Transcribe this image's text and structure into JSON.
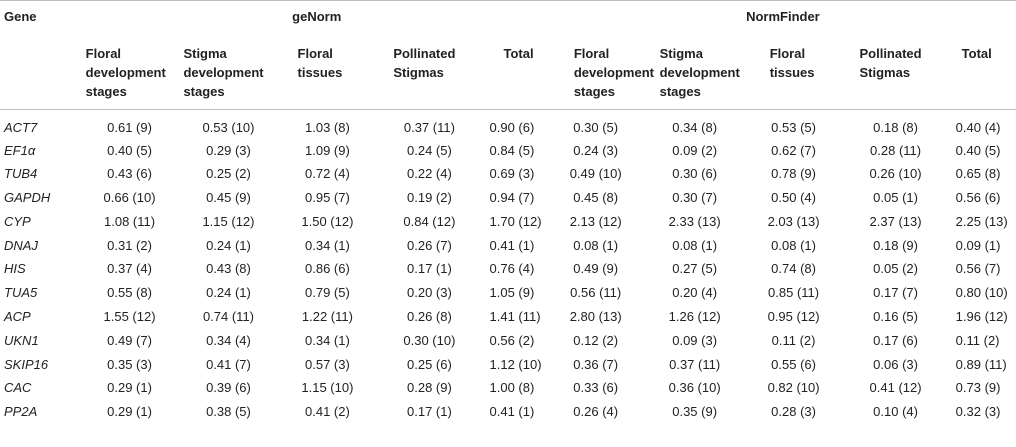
{
  "header": {
    "gene_label": "Gene",
    "groups": [
      {
        "name": "geNorm"
      },
      {
        "name": "NormFinder"
      }
    ],
    "subcolumns": [
      "Floral development stages",
      "Stigma development stages",
      "Floral tissues",
      "Pollinated Stigmas",
      "Total"
    ]
  },
  "rows": [
    {
      "gene": "ACT7",
      "genorm": [
        "0.61 (9)",
        "0.53 (10)",
        "1.03 (8)",
        "0.37 (11)",
        "0.90 (6)"
      ],
      "normfinder": [
        "0.30 (5)",
        "0.34 (8)",
        "0.53 (5)",
        "0.18 (8)",
        "0.40 (4)"
      ]
    },
    {
      "gene": "EF1α",
      "genorm": [
        "0.40 (5)",
        "0.29 (3)",
        "1.09 (9)",
        "0.24 (5)",
        "0.84 (5)"
      ],
      "normfinder": [
        "0.24 (3)",
        "0.09 (2)",
        "0.62 (7)",
        "0.28 (11)",
        "0.40 (5)"
      ]
    },
    {
      "gene": "TUB4",
      "genorm": [
        "0.43 (6)",
        "0.25 (2)",
        "0.72 (4)",
        "0.22 (4)",
        "0.69 (3)"
      ],
      "normfinder": [
        "0.49 (10)",
        "0.30 (6)",
        "0.78 (9)",
        "0.26 (10)",
        "0.65 (8)"
      ]
    },
    {
      "gene": "GAPDH",
      "genorm": [
        "0.66 (10)",
        "0.45 (9)",
        "0.95 (7)",
        "0.19 (2)",
        "0.94 (7)"
      ],
      "normfinder": [
        "0.45 (8)",
        "0.30 (7)",
        "0.50 (4)",
        "0.05 (1)",
        "0.56 (6)"
      ]
    },
    {
      "gene": "CYP",
      "genorm": [
        "1.08 (11)",
        "1.15 (12)",
        "1.50 (12)",
        "0.84 (12)",
        "1.70 (12)"
      ],
      "normfinder": [
        "2.13 (12)",
        "2.33 (13)",
        "2.03 (13)",
        "2.37 (13)",
        "2.25 (13)"
      ]
    },
    {
      "gene": "DNAJ",
      "genorm": [
        "0.31 (2)",
        "0.24 (1)",
        "0.34 (1)",
        "0.26 (7)",
        "0.41 (1)"
      ],
      "normfinder": [
        "0.08 (1)",
        "0.08 (1)",
        "0.08 (1)",
        "0.18 (9)",
        "0.09 (1)"
      ]
    },
    {
      "gene": "HIS",
      "genorm": [
        "0.37 (4)",
        "0.43 (8)",
        "0.86 (6)",
        "0.17 (1)",
        "0.76 (4)"
      ],
      "normfinder": [
        "0.49 (9)",
        "0.27 (5)",
        "0.74 (8)",
        "0.05 (2)",
        "0.56 (7)"
      ]
    },
    {
      "gene": "TUA5",
      "genorm": [
        "0.55 (8)",
        "0.24 (1)",
        "0.79 (5)",
        "0.20 (3)",
        "1.05 (9)"
      ],
      "normfinder": [
        "0.56 (11)",
        "0.20 (4)",
        "0.85 (11)",
        "0.17 (7)",
        "0.80 (10)"
      ]
    },
    {
      "gene": "ACP",
      "genorm": [
        "1.55 (12)",
        "0.74 (11)",
        "1.22 (11)",
        "0.26 (8)",
        "1.41 (11)"
      ],
      "normfinder": [
        "2.80 (13)",
        "1.26 (12)",
        "0.95 (12)",
        "0.16 (5)",
        "1.96 (12)"
      ]
    },
    {
      "gene": "UKN1",
      "genorm": [
        "0.49 (7)",
        "0.34 (4)",
        "0.34 (1)",
        "0.30 (10)",
        "0.56 (2)"
      ],
      "normfinder": [
        "0.12 (2)",
        "0.09 (3)",
        "0.11 (2)",
        "0.17 (6)",
        "0.11 (2)"
      ]
    },
    {
      "gene": "SKIP16",
      "genorm": [
        "0.35 (3)",
        "0.41 (7)",
        "0.57 (3)",
        "0.25 (6)",
        "1.12 (10)"
      ],
      "normfinder": [
        "0.36 (7)",
        "0.37 (11)",
        "0.55 (6)",
        "0.06 (3)",
        "0.89 (11)"
      ]
    },
    {
      "gene": "CAC",
      "genorm": [
        "0.29 (1)",
        "0.39 (6)",
        "1.15 (10)",
        "0.28 (9)",
        "1.00 (8)"
      ],
      "normfinder": [
        "0.33 (6)",
        "0.36 (10)",
        "0.82 (10)",
        "0.41 (12)",
        "0.73 (9)"
      ]
    },
    {
      "gene": "PP2A",
      "genorm": [
        "0.29 (1)",
        "0.38 (5)",
        "0.41 (2)",
        "0.17 (1)",
        "0.41 (1)"
      ],
      "normfinder": [
        "0.26 (4)",
        "0.35 (9)",
        "0.28 (3)",
        "0.10 (4)",
        "0.32 (3)"
      ]
    }
  ]
}
